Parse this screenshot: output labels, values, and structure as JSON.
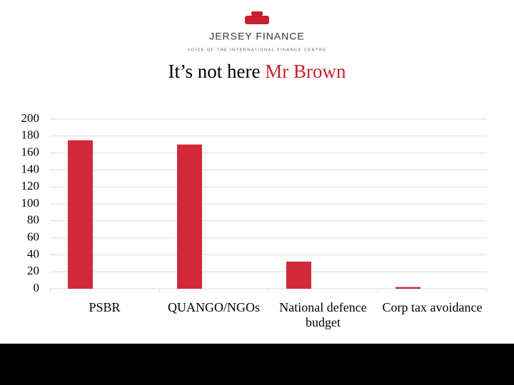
{
  "header": {
    "brand": "JERSEY FINANCE",
    "tagline": "VOICE OF THE INTERNATIONAL FINANCE CENTRE"
  },
  "chart_data": {
    "type": "bar",
    "title": "It’s not here",
    "title_highlight": "Mr Brown",
    "categories": [
      "PSBR",
      "QUANGO/NGOs",
      "National defence budget",
      "Corp tax avoidance"
    ],
    "values": [
      175,
      170,
      32,
      2
    ],
    "color": "#d1293a",
    "ylim": [
      0,
      200
    ],
    "yticks": [
      0,
      20,
      40,
      60,
      80,
      100,
      120,
      140,
      160,
      180,
      200
    ],
    "grid": true
  }
}
